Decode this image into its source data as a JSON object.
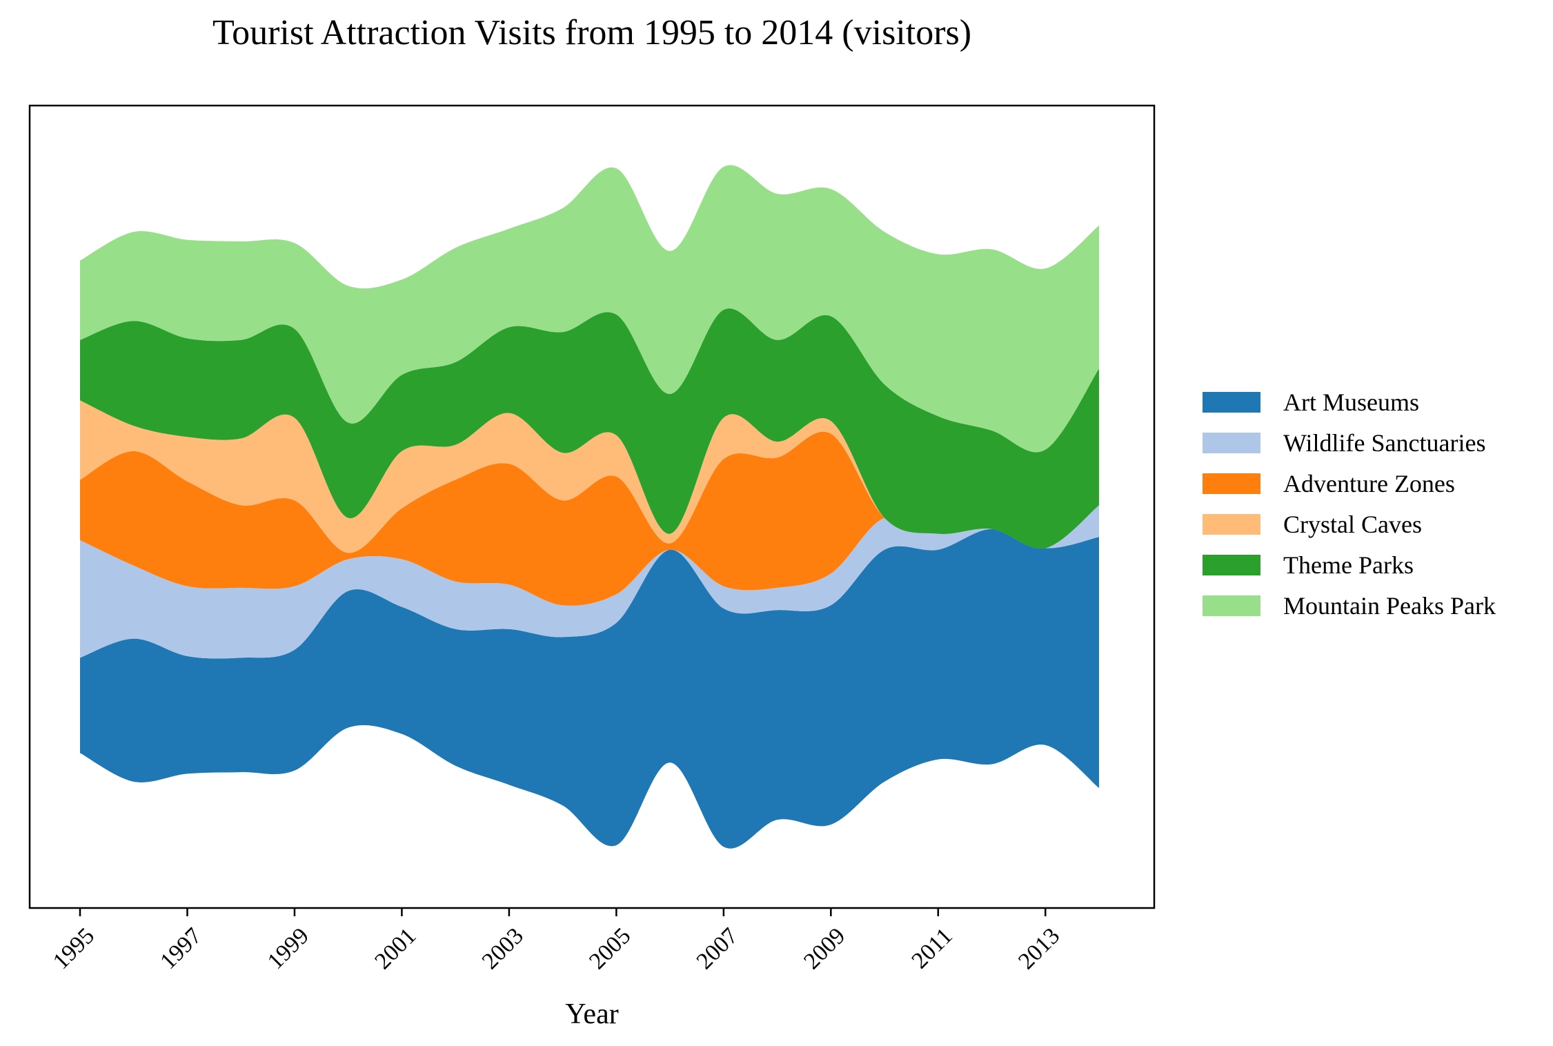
{
  "chart_data": {
    "type": "area",
    "subtype": "streamgraph",
    "title": "Tourist Attraction Visits from 1995 to 2014 (visitors)",
    "xlabel": "Year",
    "ylabel": "",
    "x": [
      1995,
      1996,
      1997,
      1998,
      1999,
      2000,
      2001,
      2002,
      2003,
      2004,
      2005,
      2006,
      2007,
      2008,
      2009,
      2010,
      2011,
      2012,
      2013,
      2014
    ],
    "x_tick_labels": [
      "1995",
      "1997",
      "1999",
      "2001",
      "2003",
      "2005",
      "2007",
      "2009",
      "2011",
      "2013"
    ],
    "y_ticks_visible": false,
    "grid": false,
    "legend_position": "right",
    "series": [
      {
        "name": "Art Museums",
        "color": "#1f77b4",
        "values": [
          3000,
          4500,
          3700,
          3600,
          3800,
          4300,
          4000,
          4300,
          4900,
          5300,
          7000,
          6700,
          7500,
          6600,
          6900,
          7300,
          6600,
          7400,
          6200,
          7900
        ]
      },
      {
        "name": "Wildlife Sanctuaries",
        "color": "#aec7e8",
        "values": [
          3700,
          2300,
          2200,
          2200,
          2000,
          1000,
          1500,
          1500,
          1400,
          1000,
          900,
          0,
          700,
          700,
          1000,
          1000,
          500,
          0,
          0,
          1000
        ]
      },
      {
        "name": "Adventure Zones",
        "color": "#ff7f0e",
        "values": [
          1900,
          3600,
          3300,
          2600,
          2700,
          200,
          1600,
          3200,
          3800,
          3300,
          3700,
          200,
          4000,
          4100,
          4400,
          0,
          0,
          0,
          0,
          0
        ]
      },
      {
        "name": "Crystal Caves",
        "color": "#ffbb78",
        "values": [
          2500,
          800,
          1400,
          2100,
          2600,
          1100,
          1800,
          1100,
          1600,
          1500,
          1300,
          300,
          1300,
          500,
          400,
          0,
          0,
          0,
          0,
          0
        ]
      },
      {
        "name": "Theme Parks",
        "color": "#2ca02c",
        "values": [
          1900,
          3300,
          3100,
          3100,
          2800,
          3000,
          2400,
          2600,
          2700,
          3800,
          3800,
          4400,
          3400,
          3200,
          3300,
          4200,
          3700,
          3100,
          3100,
          4300
        ]
      },
      {
        "name": "Mountain Peaks Park",
        "color": "#98df8a",
        "values": [
          2500,
          2800,
          3100,
          3100,
          2700,
          4300,
          3000,
          3600,
          3100,
          3900,
          4600,
          4500,
          4500,
          4600,
          4000,
          4800,
          5100,
          5700,
          5700,
          4500
        ]
      }
    ]
  }
}
